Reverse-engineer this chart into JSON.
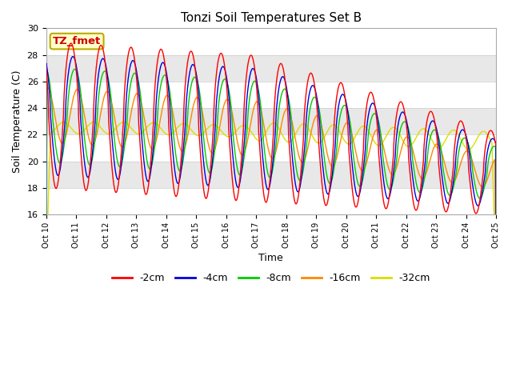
{
  "title": "Tonzi Soil Temperatures Set B",
  "xlabel": "Time",
  "ylabel": "Soil Temperature (C)",
  "annotation_text": "TZ_fmet",
  "annotation_bg": "#ffffcc",
  "annotation_border": "#bbaa00",
  "ylim": [
    16,
    30
  ],
  "xlim": [
    0,
    360
  ],
  "series_colors": [
    "#ff0000",
    "#0000dd",
    "#00cc00",
    "#ff8800",
    "#dddd00"
  ],
  "series_labels": [
    "-2cm",
    "-4cm",
    "-8cm",
    "-16cm",
    "-32cm"
  ],
  "bg_color_light": "#f0f0f0",
  "bg_color_dark": "#e0e0e0",
  "grid_color": "#ffffff",
  "tick_labels": [
    "Oct 10",
    "Oct 11",
    "Oct 12",
    "Oct 13",
    "Oct 14",
    "Oct 15",
    "Oct 16",
    "Oct 17",
    "Oct 18",
    "Oct 19",
    "Oct 20",
    "Oct 21",
    "Oct 22",
    "Oct 23",
    "Oct 24",
    "Oct 25"
  ],
  "tick_positions": [
    0,
    24,
    48,
    72,
    96,
    120,
    144,
    168,
    192,
    216,
    240,
    264,
    288,
    312,
    336,
    360
  ],
  "yticks": [
    16,
    18,
    20,
    22,
    24,
    26,
    28,
    30
  ]
}
